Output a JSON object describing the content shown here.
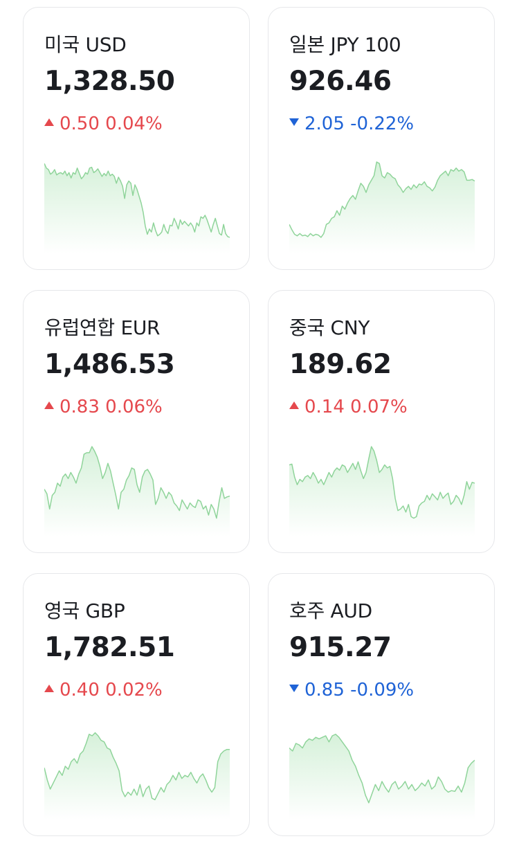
{
  "colors": {
    "up": "#e5484d",
    "down": "#1f63d6",
    "spark_line": "#8fd49a",
    "spark_fill_top": "#d6f1da",
    "spark_fill_bottom": "#ffffff"
  },
  "cards": [
    {
      "name": "미국 USD",
      "rate": "1,328.50",
      "direction": "up",
      "change": "0.50",
      "percent": "0.04%",
      "trend": [
        0.98,
        0.92,
        0.9,
        0.84,
        0.86,
        0.9,
        0.83,
        0.85,
        0.86,
        0.84,
        0.88,
        0.82,
        0.86,
        0.79,
        0.86,
        0.84,
        0.92,
        0.85,
        0.78,
        0.81,
        0.86,
        0.84,
        0.92,
        0.93,
        0.86,
        0.88,
        0.91,
        0.86,
        0.81,
        0.85,
        0.82,
        0.88,
        0.82,
        0.84,
        0.81,
        0.72,
        0.8,
        0.75,
        0.68,
        0.52,
        0.7,
        0.75,
        0.72,
        0.56,
        0.7,
        0.64,
        0.55,
        0.46,
        0.34,
        0.16,
        0.05,
        0.12,
        0.08,
        0.2,
        0.1,
        0.03,
        0.05,
        0.08,
        0.18,
        0.1,
        0.06,
        0.17,
        0.16,
        0.26,
        0.2,
        0.12,
        0.24,
        0.18,
        0.22,
        0.19,
        0.16,
        0.2,
        0.16,
        0.08,
        0.2,
        0.16,
        0.28,
        0.26,
        0.3,
        0.24,
        0.16,
        0.08,
        0.18,
        0.26,
        0.16,
        0.06,
        0.04,
        0.18,
        0.06,
        0.02,
        0.01
      ]
    },
    {
      "name": "일본 JPY 100",
      "rate": "926.46",
      "direction": "down",
      "change": "2.05",
      "percent": "-0.22%",
      "trend": [
        0.18,
        0.11,
        0.05,
        0.03,
        0.06,
        0.03,
        0.04,
        0.02,
        0.06,
        0.03,
        0.05,
        0.04,
        0.01,
        0.06,
        0.18,
        0.2,
        0.26,
        0.28,
        0.36,
        0.3,
        0.42,
        0.38,
        0.46,
        0.52,
        0.56,
        0.51,
        0.62,
        0.72,
        0.68,
        0.6,
        0.7,
        0.76,
        0.82,
        1.0,
        0.98,
        0.82,
        0.79,
        0.86,
        0.84,
        0.8,
        0.78,
        0.7,
        0.66,
        0.6,
        0.65,
        0.68,
        0.64,
        0.7,
        0.66,
        0.71,
        0.7,
        0.74,
        0.68,
        0.66,
        0.62,
        0.67,
        0.76,
        0.82,
        0.85,
        0.88,
        0.82,
        0.9,
        0.88,
        0.92,
        0.88,
        0.9,
        0.87,
        0.76,
        0.76,
        0.77,
        0.75
      ]
    },
    {
      "name": "유럽연합 EUR",
      "rate": "1,486.53",
      "direction": "up",
      "change": "0.83",
      "percent": "0.06%",
      "trend": [
        0.42,
        0.36,
        0.16,
        0.34,
        0.38,
        0.5,
        0.46,
        0.58,
        0.62,
        0.56,
        0.64,
        0.58,
        0.5,
        0.62,
        0.7,
        0.88,
        0.9,
        0.9,
        0.98,
        0.92,
        0.84,
        0.72,
        0.56,
        0.64,
        0.76,
        0.66,
        0.5,
        0.34,
        0.16,
        0.38,
        0.42,
        0.54,
        0.6,
        0.7,
        0.68,
        0.48,
        0.38,
        0.58,
        0.66,
        0.68,
        0.62,
        0.54,
        0.22,
        0.3,
        0.44,
        0.38,
        0.3,
        0.38,
        0.34,
        0.24,
        0.2,
        0.14,
        0.28,
        0.22,
        0.16,
        0.24,
        0.2,
        0.18,
        0.28,
        0.26,
        0.16,
        0.2,
        0.08,
        0.22,
        0.16,
        0.04,
        0.26,
        0.44,
        0.3,
        0.32,
        0.33
      ]
    },
    {
      "name": "중국 CNY",
      "rate": "189.62",
      "direction": "up",
      "change": "0.14",
      "percent": "0.07%",
      "trend": [
        0.74,
        0.75,
        0.58,
        0.48,
        0.55,
        0.52,
        0.58,
        0.6,
        0.56,
        0.64,
        0.58,
        0.5,
        0.55,
        0.48,
        0.56,
        0.64,
        0.58,
        0.66,
        0.7,
        0.67,
        0.74,
        0.72,
        0.64,
        0.7,
        0.76,
        0.68,
        0.78,
        0.66,
        0.56,
        0.64,
        0.82,
        0.98,
        0.92,
        0.8,
        0.64,
        0.68,
        0.74,
        0.7,
        0.72,
        0.56,
        0.3,
        0.14,
        0.16,
        0.2,
        0.12,
        0.22,
        0.06,
        0.04,
        0.06,
        0.2,
        0.24,
        0.26,
        0.34,
        0.28,
        0.36,
        0.32,
        0.28,
        0.38,
        0.3,
        0.34,
        0.37,
        0.22,
        0.26,
        0.34,
        0.3,
        0.22,
        0.34,
        0.52,
        0.42,
        0.51,
        0.5
      ]
    },
    {
      "name": "영국 GBP",
      "rate": "1,782.51",
      "direction": "up",
      "change": "0.40",
      "percent": "0.02%",
      "trend": [
        0.48,
        0.32,
        0.2,
        0.28,
        0.36,
        0.44,
        0.38,
        0.5,
        0.46,
        0.56,
        0.6,
        0.54,
        0.66,
        0.7,
        0.8,
        0.92,
        0.9,
        0.94,
        0.9,
        0.84,
        0.82,
        0.74,
        0.72,
        0.62,
        0.54,
        0.44,
        0.18,
        0.1,
        0.16,
        0.12,
        0.2,
        0.12,
        0.26,
        0.1,
        0.2,
        0.24,
        0.08,
        0.06,
        0.14,
        0.22,
        0.16,
        0.26,
        0.3,
        0.38,
        0.32,
        0.42,
        0.34,
        0.38,
        0.36,
        0.42,
        0.34,
        0.28,
        0.36,
        0.4,
        0.32,
        0.22,
        0.16,
        0.22,
        0.56,
        0.66,
        0.7,
        0.72,
        0.72
      ]
    },
    {
      "name": "호주 AUD",
      "rate": "915.27",
      "direction": "down",
      "change": "0.85",
      "percent": "-0.09%",
      "trend": [
        0.74,
        0.7,
        0.8,
        0.78,
        0.74,
        0.82,
        0.86,
        0.84,
        0.88,
        0.86,
        0.88,
        0.9,
        0.82,
        0.9,
        0.92,
        0.88,
        0.82,
        0.76,
        0.7,
        0.58,
        0.5,
        0.38,
        0.28,
        0.12,
        0.02,
        0.14,
        0.26,
        0.18,
        0.3,
        0.22,
        0.16,
        0.26,
        0.3,
        0.2,
        0.24,
        0.3,
        0.2,
        0.26,
        0.18,
        0.22,
        0.28,
        0.24,
        0.32,
        0.2,
        0.24,
        0.36,
        0.3,
        0.2,
        0.16,
        0.18,
        0.17,
        0.24,
        0.16,
        0.28,
        0.48,
        0.54,
        0.58
      ]
    }
  ]
}
